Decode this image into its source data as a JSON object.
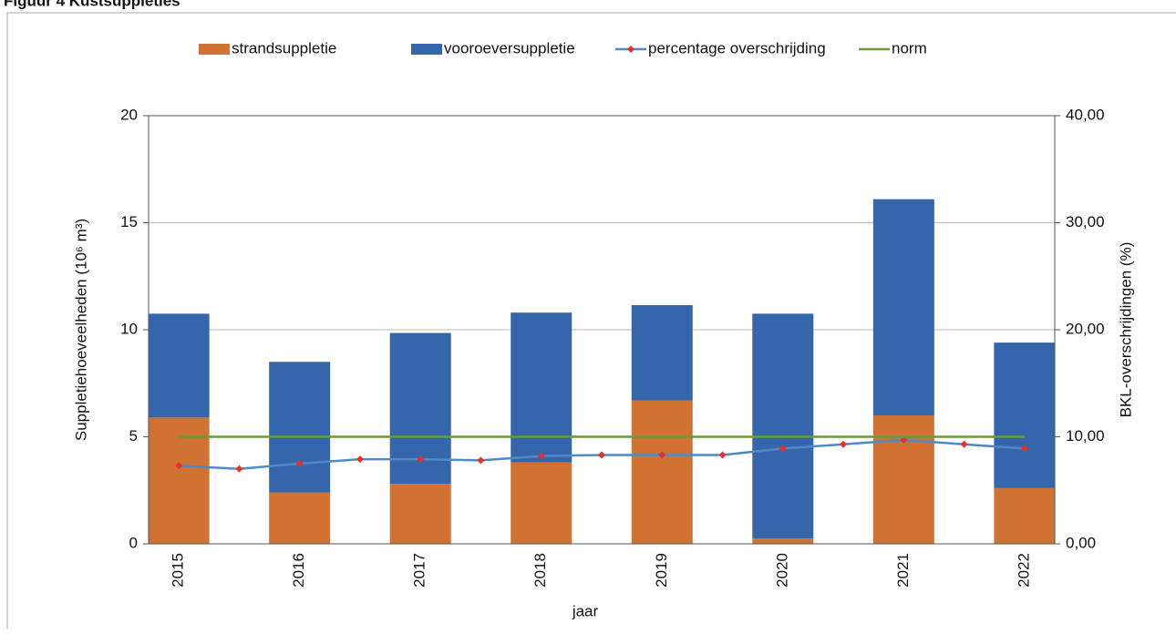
{
  "chart_data": {
    "type": "bar",
    "title": "Figuur 4 Kustsuppleties",
    "x_label": "jaar",
    "y_label": "Suppletiehoeveelheden (10⁶ m³)",
    "y2_label": "BKL-overschrijdingen (%)",
    "categories": [
      "2015",
      "2016",
      "2017",
      "2018",
      "2019",
      "2020",
      "2021",
      "2022"
    ],
    "stacked": true,
    "grid": true,
    "legend": "top",
    "xlim": [
      2014.75,
      2022.25
    ],
    "ylim": [
      0,
      20
    ],
    "yticks": [
      0,
      5,
      10,
      15,
      20
    ],
    "y2lim": [
      0,
      40
    ],
    "y2ticks": [
      {
        "value": 0,
        "label": "0,00"
      },
      {
        "value": 10,
        "label": "10,00"
      },
      {
        "value": 20,
        "label": "20,00"
      },
      {
        "value": 30,
        "label": "30,00"
      },
      {
        "value": 40,
        "label": "40,00"
      }
    ],
    "series": [
      {
        "name": "strandsuppletie",
        "type": "bar",
        "color": "#d07232",
        "values": [
          5.9,
          2.4,
          2.8,
          3.8,
          6.7,
          0.25,
          6.0,
          2.6
        ]
      },
      {
        "name": "vooroeversuppletie",
        "type": "bar",
        "color": "#3565aa",
        "values": [
          4.85,
          6.1,
          7.05,
          7.0,
          4.45,
          10.5,
          10.1,
          6.8
        ]
      },
      {
        "name": "percentage overschrijding",
        "type": "line",
        "axis": "y2",
        "color": "#4d8ac6",
        "marker_color": "#e8302a",
        "x": [
          2015,
          2015.5,
          2016,
          2016.5,
          2017,
          2017.5,
          2018,
          2018.5,
          2019,
          2019.5,
          2020,
          2020.5,
          2021,
          2021.5,
          2022
        ],
        "values": [
          7.3,
          7.0,
          7.5,
          7.9,
          7.9,
          7.8,
          8.2,
          8.3,
          8.3,
          8.3,
          8.9,
          9.3,
          9.7,
          9.3,
          8.9
        ]
      },
      {
        "name": "norm",
        "type": "line",
        "axis": "y2",
        "color": "#6a9a3a",
        "x": [
          2015,
          2022
        ],
        "values": [
          10,
          10
        ]
      }
    ]
  }
}
